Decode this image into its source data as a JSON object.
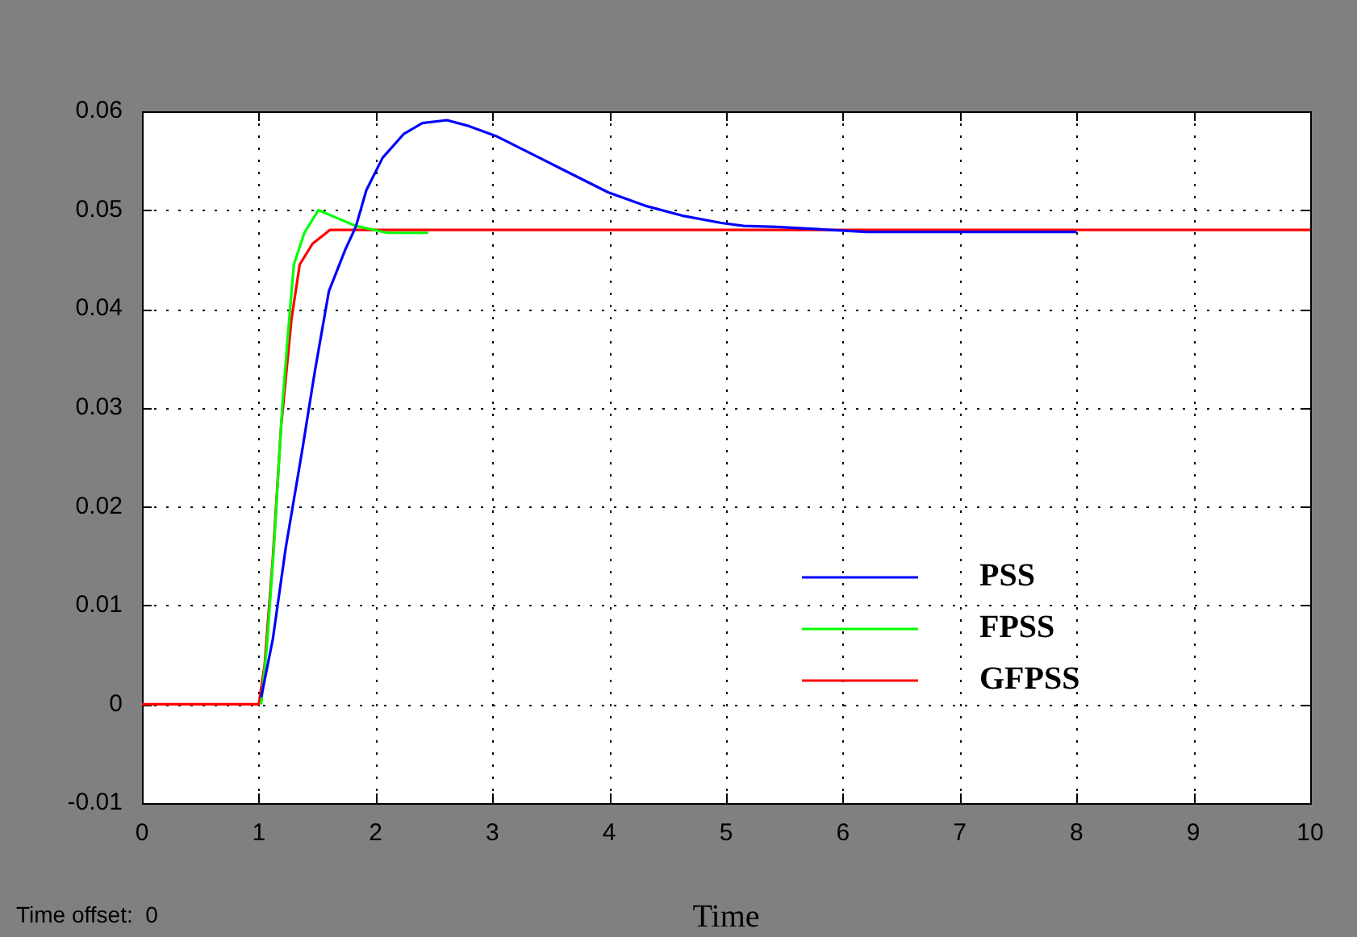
{
  "chart_data": {
    "type": "line",
    "xlabel": "Time",
    "annotations": [
      "Time offset:  0"
    ],
    "xlim": [
      0,
      10
    ],
    "xticks": [
      0,
      1,
      2,
      3,
      4,
      5,
      6,
      7,
      8,
      9,
      10
    ],
    "ylim": [
      -0.01,
      0.06
    ],
    "yticks": [
      -0.01,
      0,
      0.01,
      0.02,
      0.03,
      0.04,
      0.05,
      0.06
    ],
    "grid": true,
    "legend": "bottom right",
    "line_style": "solid",
    "marker": "none",
    "series": [
      {
        "name": "PSS",
        "color": "#0000ff",
        "x": [
          1.02,
          1.12,
          1.23,
          1.37,
          1.48,
          1.6,
          1.74,
          1.83,
          1.92,
          2.06,
          2.24,
          2.4,
          2.61,
          2.8,
          3.03,
          3.35,
          3.67,
          3.99,
          4.32,
          4.64,
          4.96,
          5.15,
          5.43,
          6.2,
          8.0
        ],
        "values": [
          0.0007,
          0.0066,
          0.0158,
          0.0256,
          0.0337,
          0.0418,
          0.046,
          0.0483,
          0.052,
          0.0553,
          0.0577,
          0.0588,
          0.0591,
          0.0585,
          0.0575,
          0.0556,
          0.0537,
          0.0518,
          0.0504,
          0.0494,
          0.0487,
          0.0484,
          0.0483,
          0.0478,
          0.0478
        ]
      },
      {
        "name": "FPSS",
        "color": "#00ff00",
        "x": [
          1.02,
          1.07,
          1.13,
          1.2,
          1.25,
          1.3,
          1.39,
          1.51,
          1.67,
          1.83,
          2.1,
          2.45
        ],
        "values": [
          0,
          0.006,
          0.016,
          0.03,
          0.0375,
          0.0445,
          0.0477,
          0.05,
          0.0492,
          0.0484,
          0.0477,
          0.0477
        ]
      },
      {
        "name": "GFPSS",
        "color": "#ff0000",
        "x": [
          0,
          1.0,
          1.05,
          1.12,
          1.19,
          1.28,
          1.35,
          1.46,
          1.61,
          10
        ],
        "values": [
          0,
          0,
          0.004,
          0.0148,
          0.028,
          0.039,
          0.0445,
          0.0466,
          0.048,
          0.048
        ]
      }
    ]
  }
}
